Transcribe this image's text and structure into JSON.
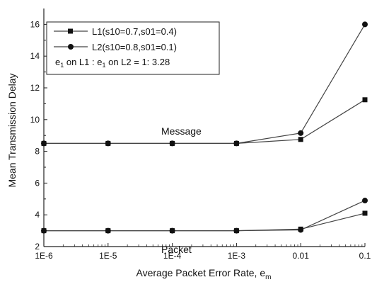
{
  "chart_data": {
    "type": "line",
    "xlabel": "Average Packet Error Rate, e",
    "xlabel_sub": "m",
    "ylabel": "Mean Transmission Delay",
    "x_scale": "log",
    "x_tick_labels": [
      "1E-6",
      "1E-5",
      "1E-4",
      "1E-3",
      "0.01",
      "0.1"
    ],
    "x": [
      1e-06,
      1e-05,
      0.0001,
      0.001,
      0.01,
      0.1
    ],
    "ylim": [
      2,
      17
    ],
    "y_ticks": [
      2,
      4,
      6,
      8,
      10,
      12,
      14,
      16
    ],
    "grid": false,
    "legend_position": "top-left",
    "legend": {
      "note_parts": [
        "e",
        "1",
        " on L1 : e",
        "1",
        " on L2 = 1: 3.28"
      ]
    },
    "series": [
      {
        "name": "L1(s10=0.7,s01=0.4)",
        "marker": "square",
        "group": "Message",
        "values": [
          8.5,
          8.5,
          8.5,
          8.5,
          8.75,
          11.25
        ]
      },
      {
        "name": "L2(s10=0.8,s01=0.1)",
        "marker": "circle",
        "group": "Message",
        "values": [
          8.5,
          8.5,
          8.5,
          8.5,
          9.15,
          16.0
        ]
      },
      {
        "name": "L1(s10=0.7,s01=0.4)",
        "marker": "square",
        "group": "Packet",
        "values": [
          3.0,
          3.0,
          3.0,
          3.0,
          3.1,
          4.1
        ]
      },
      {
        "name": "L2(s10=0.8,s01=0.1)",
        "marker": "circle",
        "group": "Packet",
        "values": [
          3.0,
          3.0,
          3.0,
          3.0,
          3.05,
          4.9
        ]
      }
    ],
    "annotations": [
      "Message",
      "Packet"
    ],
    "colors": {
      "line": "#444444",
      "marker": "#111111",
      "axis": "#222222"
    }
  }
}
